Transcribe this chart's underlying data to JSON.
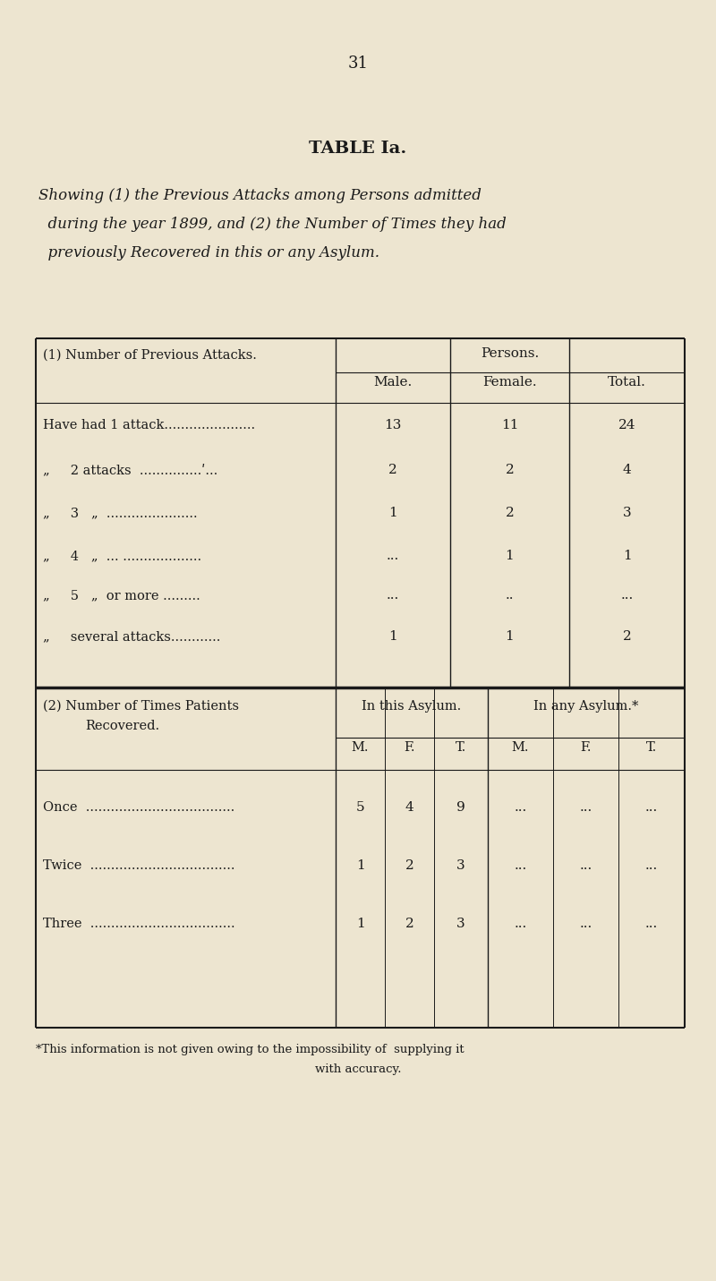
{
  "bg_color": "#ede5d0",
  "text_color": "#1a1a1a",
  "page_number": "31",
  "table_title": "TABLE Ia.",
  "subtitle_lines": [
    "Showing (1) the Previous Attacks among Persons admitted",
    "  during the year 1899, and (2) the Number of Times they had",
    "  previously Recovered in this or any Asylum."
  ],
  "sec1_col_header_top": "Persons.",
  "sec1_col_headers": [
    "Male.",
    "Female.",
    "Total."
  ],
  "sec1_left_header": "(1) Number of Previous Attacks.",
  "sec1_rows": [
    [
      "Have had 1 attack......................",
      "13",
      "11",
      "24"
    ],
    [
      "„     2 attacks  ...............ʹ...",
      "2",
      "2",
      "4"
    ],
    [
      "„     3   „  ......................",
      "1",
      "2",
      "3"
    ],
    [
      "„     4   „  ... ...................",
      "...",
      "1",
      "1"
    ],
    [
      "„     5   „  or more .........",
      "...",
      "..",
      "..."
    ],
    [
      "„     several attacks............",
      "1",
      "1",
      "2"
    ]
  ],
  "sec2_left_header_line1": "(2) Number of Times Patients",
  "sec2_left_header_line2": "Recovered.",
  "sec2_mid_header": "In this Asylum.",
  "sec2_right_header": "In any Asylum.*",
  "sec2_sub_headers": [
    "M.",
    "F.",
    "T.",
    "M.",
    "F.",
    "T."
  ],
  "sec2_rows": [
    [
      "Once  ....................................",
      "5",
      "4",
      "9",
      "...",
      "...",
      "..."
    ],
    [
      "Twice  ...................................",
      "1",
      "2",
      "3",
      "...",
      "...",
      "..."
    ],
    [
      "Three  ...................................",
      "1",
      "2",
      "3",
      "...",
      "...",
      "..."
    ]
  ],
  "footnote_line1": "*This information is not given owing to the impossibility of  supplying it",
  "footnote_line2": "with accuracy."
}
